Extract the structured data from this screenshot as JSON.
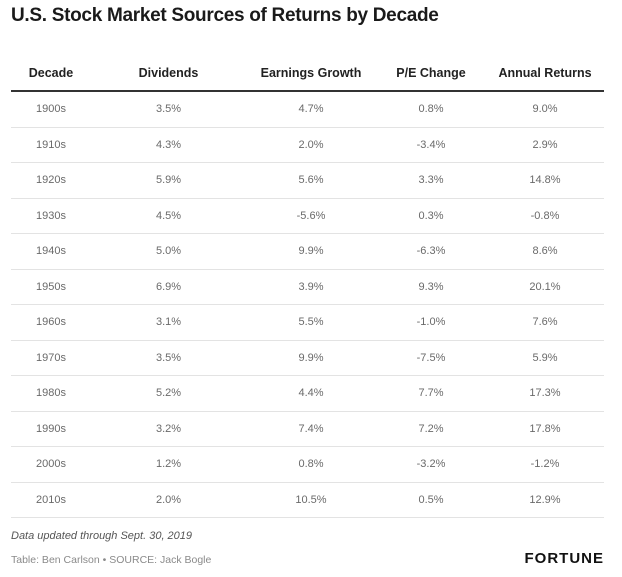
{
  "title": "U.S. Stock Market Sources of Returns by Decade",
  "table": {
    "columns": [
      "Decade",
      "Dividends",
      "Earnings Growth",
      "P/E Change",
      "Annual Returns"
    ],
    "rows": [
      [
        "1900s",
        "3.5%",
        "4.7%",
        "0.8%",
        "9.0%"
      ],
      [
        "1910s",
        "4.3%",
        "2.0%",
        "-3.4%",
        "2.9%"
      ],
      [
        "1920s",
        "5.9%",
        "5.6%",
        "3.3%",
        "14.8%"
      ],
      [
        "1930s",
        "4.5%",
        "-5.6%",
        "0.3%",
        "-0.8%"
      ],
      [
        "1940s",
        "5.0%",
        "9.9%",
        "-6.3%",
        "8.6%"
      ],
      [
        "1950s",
        "6.9%",
        "3.9%",
        "9.3%",
        "20.1%"
      ],
      [
        "1960s",
        "3.1%",
        "5.5%",
        "-1.0%",
        "7.6%"
      ],
      [
        "1970s",
        "3.5%",
        "9.9%",
        "-7.5%",
        "5.9%"
      ],
      [
        "1980s",
        "5.2%",
        "4.4%",
        "7.7%",
        "17.3%"
      ],
      [
        "1990s",
        "3.2%",
        "7.4%",
        "7.2%",
        "17.8%"
      ],
      [
        "2000s",
        "1.2%",
        "0.8%",
        "-3.2%",
        "-1.2%"
      ],
      [
        "2010s",
        "2.0%",
        "10.5%",
        "0.5%",
        "12.9%"
      ]
    ]
  },
  "footer": {
    "note": "Data updated through Sept. 30, 2019",
    "credit": "Table: Ben Carlson • SOURCE: Jack Bogle",
    "logo": "FORTUNE"
  }
}
